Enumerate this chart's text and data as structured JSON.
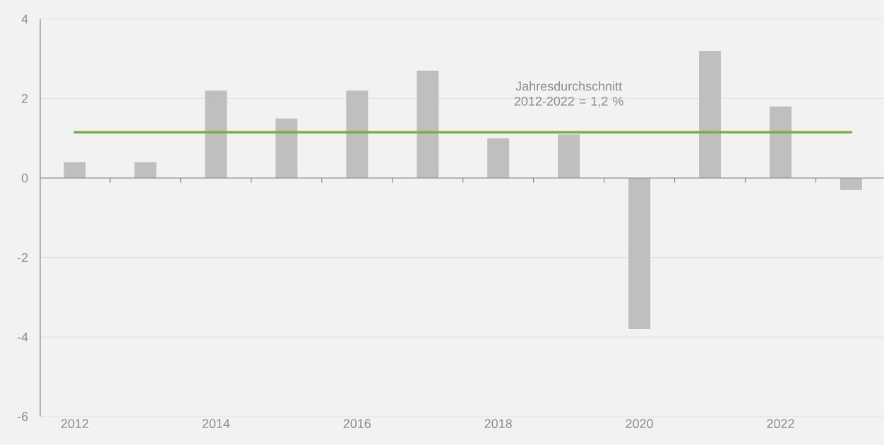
{
  "chart_data": {
    "type": "bar",
    "categories": [
      "2012",
      null,
      "2014",
      null,
      "2016",
      null,
      "2018",
      null,
      "2020",
      null,
      "2022",
      null
    ],
    "values": [
      0.4,
      0.4,
      2.2,
      1.5,
      2.2,
      2.7,
      1.0,
      1.1,
      -3.8,
      3.2,
      1.8,
      -0.3
    ],
    "color": "#bfbfbf",
    "ylim": [
      -6,
      4
    ],
    "yticks": [
      -6,
      -4,
      -2,
      0,
      2,
      4
    ],
    "grid": "y",
    "ref_lines": [
      {
        "axis": "y",
        "value": 1.15,
        "label": "Jahresdurchschnitt 2012-2022 = 1,2 %",
        "color": "#76b041"
      }
    ]
  }
}
